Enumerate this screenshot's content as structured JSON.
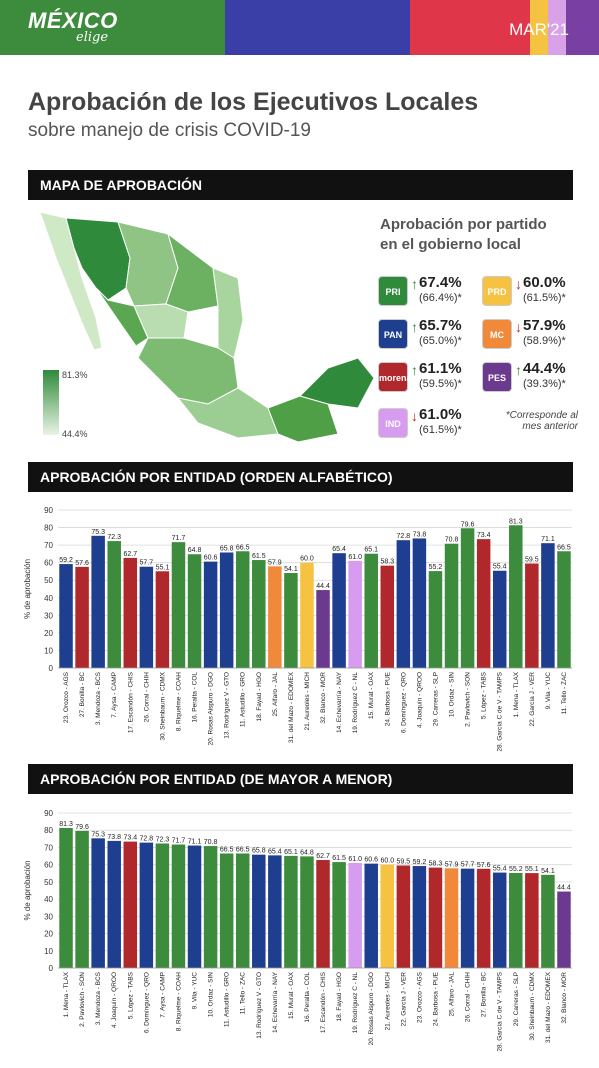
{
  "header": {
    "logo": "MÉXICO",
    "logo_sub": "elige",
    "date": "MAR'21",
    "colors": [
      "#3d8b3d",
      "#3a3fa8",
      "#e0364a",
      "#f5c242",
      "#d8a1e8",
      "#7a3fa3"
    ]
  },
  "title": "Aprobación de los Ejecutivos Locales",
  "subtitle": "sobre manejo de crisis COVID-19",
  "sections": {
    "map": "MAPA DE APROBACIÓN",
    "alpha": "APROBACIÓN POR ENTIDAD (ORDEN ALFABÉTICO)",
    "sorted": "APROBACIÓN POR ENTIDAD (DE MAYOR A MENOR)"
  },
  "map_scale": {
    "max": "81.3%",
    "min": "44.4%"
  },
  "party_panel": {
    "title_line1": "Aprobación por partido",
    "title_line2": "en el gobierno local",
    "note_line1": "*Corresponde al",
    "note_line2": "mes anterior",
    "parties": [
      {
        "name": "PRI",
        "logo_icon": "pri-logo-icon",
        "value": "67.4%",
        "prev": "(66.4%)*",
        "trend": "up",
        "color": "#2f8a3b"
      },
      {
        "name": "PRD",
        "logo_icon": "prd-logo-icon",
        "value": "60.0%",
        "prev": "(61.5%)*",
        "trend": "down",
        "color": "#f5c242"
      },
      {
        "name": "PAN",
        "logo_icon": "pan-logo-icon",
        "value": "65.7%",
        "prev": "(65.0%)*",
        "trend": "up",
        "color": "#1e3f8f"
      },
      {
        "name": "MC",
        "logo_icon": "mc-logo-icon",
        "value": "57.9%",
        "prev": "(58.9%)*",
        "trend": "down",
        "color": "#f08a3a"
      },
      {
        "name": "morena",
        "logo_icon": "morena-logo-icon",
        "value": "61.1%",
        "prev": "(59.5%)*",
        "trend": "up",
        "color": "#b0282c"
      },
      {
        "name": "PES",
        "logo_icon": "pes-logo-icon",
        "value": "44.4%",
        "prev": "(39.3%)*",
        "trend": "up",
        "color": "#6b3a8e"
      },
      {
        "name": "IND",
        "logo_icon": "ind-logo-icon",
        "value": "61.0%",
        "prev": "(61.5%)*",
        "trend": "down",
        "color": "#d79cf0"
      }
    ]
  },
  "chart_data": [
    {
      "type": "bar",
      "ylabel": "% de aprobación",
      "ylim": [
        0,
        90
      ],
      "yticks": [
        0,
        10,
        20,
        30,
        40,
        50,
        60,
        70,
        80,
        90
      ],
      "categories": [
        "23. Orozco - AGS",
        "27. Bonilla - BC",
        "3. Mendoza - BCS",
        "7. Aysa - CAMP",
        "17. Escandón - CHIS",
        "26. Corral - CHIH",
        "30. Sheinbaum - CDMX",
        "8. Riquelme - COAH",
        "16. Peralta - COL",
        "20. Rosas Aispuro - DGO",
        "13. Rodríguez V - GTO",
        "11. Astudillo - GRO",
        "18. Fayad - HGO",
        "25. Alfaro - JAL",
        "31. del Mazo - EDOMEX",
        "21. Aureoles - MICH",
        "32. Blanco - MOR",
        "14. Echevarría - NAY",
        "19. Rodríguez C - NL",
        "15. Murat - OAX",
        "24. Barbosa - PUE",
        "6. Domínguez - QRO",
        "4. Joaquín - QROO",
        "29. Carreras - SLP",
        "10. Ordaz - SIN",
        "2. Pavlovich - SON",
        "5. López - TABS",
        "28. García C de V - TAMPS",
        "1. Mena - TLAX",
        "22. García J - VER",
        "9. Vila - YUC",
        "11. Tello - ZAC"
      ],
      "values": [
        59.2,
        57.6,
        75.3,
        72.3,
        62.7,
        57.7,
        55.1,
        71.7,
        64.8,
        60.6,
        65.8,
        66.5,
        61.5,
        57.9,
        54.1,
        60.0,
        44.4,
        65.4,
        61.0,
        65.1,
        58.3,
        72.8,
        73.8,
        55.2,
        70.8,
        79.6,
        73.4,
        55.4,
        81.3,
        59.5,
        71.1,
        66.5
      ],
      "labels": [
        "59.2",
        "57.6",
        "75.3",
        "72.3",
        "62.7",
        "57.7",
        "55.1",
        "71.7",
        "64.8",
        "60.6",
        "65.8",
        "66.5",
        "61.5",
        "57.9",
        "54.1",
        "60.0",
        "44.4",
        "65.4",
        "61.0",
        "65.1",
        "58.3",
        "72.8",
        "73.8",
        "55.2",
        "70.8",
        "79.6",
        "73.4",
        "55.4",
        "81.3",
        "59.5",
        "71.1",
        "66.5"
      ],
      "colors": [
        "#1e3f8f",
        "#b0282c",
        "#1e3f8f",
        "#3d8b3d",
        "#b0282c",
        "#1e3f8f",
        "#b0282c",
        "#3d8b3d",
        "#3d8b3d",
        "#1e3f8f",
        "#1e3f8f",
        "#3d8b3d",
        "#3d8b3d",
        "#f08a3a",
        "#3d8b3d",
        "#f5c242",
        "#6b3a8e",
        "#1e3f8f",
        "#d79cf0",
        "#3d8b3d",
        "#b0282c",
        "#1e3f8f",
        "#1e3f8f",
        "#3d8b3d",
        "#3d8b3d",
        "#3d8b3d",
        "#b0282c",
        "#1e3f8f",
        "#3d8b3d",
        "#b0282c",
        "#1e3f8f",
        "#3d8b3d"
      ]
    },
    {
      "type": "bar",
      "ylabel": "% de aprobación",
      "ylim": [
        0,
        90
      ],
      "yticks": [
        0,
        10,
        20,
        30,
        40,
        50,
        60,
        70,
        80,
        90
      ],
      "categories": [
        "1. Mena - TLAX",
        "2. Pavlovich - SON",
        "3. Mendoza - BCS",
        "4. Joaquín - QROO",
        "5. López - TABS",
        "6. Domínguez - QRO",
        "7. Aysa - CAMP",
        "8. Riquelme - COAH",
        "9. Vila - YUC",
        "10. Ordaz - SIN",
        "11. Astudillo - GRO",
        "11. Tello - ZAC",
        "13. Rodríguez V - GTO",
        "14. Echevarría - NAY",
        "15. Murat - OAX",
        "16. Peralta - COL",
        "17. Escandón - CHIS",
        "18. Fayad - HGO",
        "19. Rodríguez C - NL",
        "20. Rosas Aispuro - DGO",
        "21. Aureoles - MICH",
        "22. García J - VER",
        "23. Orozco - AGS",
        "24. Barbosa - PUE",
        "25. Alfaro - JAL",
        "26. Corral - CHIH",
        "27. Bonilla - BC",
        "28. García C de V - TAMPS",
        "29. Carreras - SLP",
        "30. Sheinbaum - CDMX",
        "31. del Mazo - EDOMEX",
        "32. Blanco - MOR"
      ],
      "values": [
        81.3,
        79.6,
        75.3,
        73.8,
        73.4,
        72.8,
        72.3,
        71.7,
        71.1,
        70.8,
        66.5,
        66.5,
        65.8,
        65.4,
        65.1,
        64.8,
        62.7,
        61.5,
        61.0,
        60.6,
        60.0,
        59.5,
        59.2,
        58.3,
        57.9,
        57.7,
        57.6,
        55.4,
        55.2,
        55.1,
        54.1,
        44.4
      ],
      "labels": [
        "81.3",
        "79.6",
        "75.3",
        "73.8",
        "73.4",
        "72.8",
        "72.3",
        "71.7",
        "71.1",
        "70.8",
        "66.5",
        "66.5",
        "65.8",
        "65.4",
        "65.1",
        "64.8",
        "62.7",
        "61.5",
        "61.0",
        "60.6",
        "60.0",
        "59.5",
        "59.2",
        "58.3",
        "57.9",
        "57.7",
        "57.6",
        "55.4",
        "55.2",
        "55.1",
        "54.1",
        "44.4"
      ],
      "colors": [
        "#3d8b3d",
        "#3d8b3d",
        "#1e3f8f",
        "#1e3f8f",
        "#b0282c",
        "#1e3f8f",
        "#3d8b3d",
        "#3d8b3d",
        "#1e3f8f",
        "#3d8b3d",
        "#3d8b3d",
        "#3d8b3d",
        "#1e3f8f",
        "#1e3f8f",
        "#3d8b3d",
        "#3d8b3d",
        "#b0282c",
        "#3d8b3d",
        "#d79cf0",
        "#1e3f8f",
        "#f5c242",
        "#b0282c",
        "#1e3f8f",
        "#b0282c",
        "#f08a3a",
        "#1e3f8f",
        "#b0282c",
        "#1e3f8f",
        "#3d8b3d",
        "#b0282c",
        "#3d8b3d",
        "#6b3a8e"
      ]
    }
  ]
}
